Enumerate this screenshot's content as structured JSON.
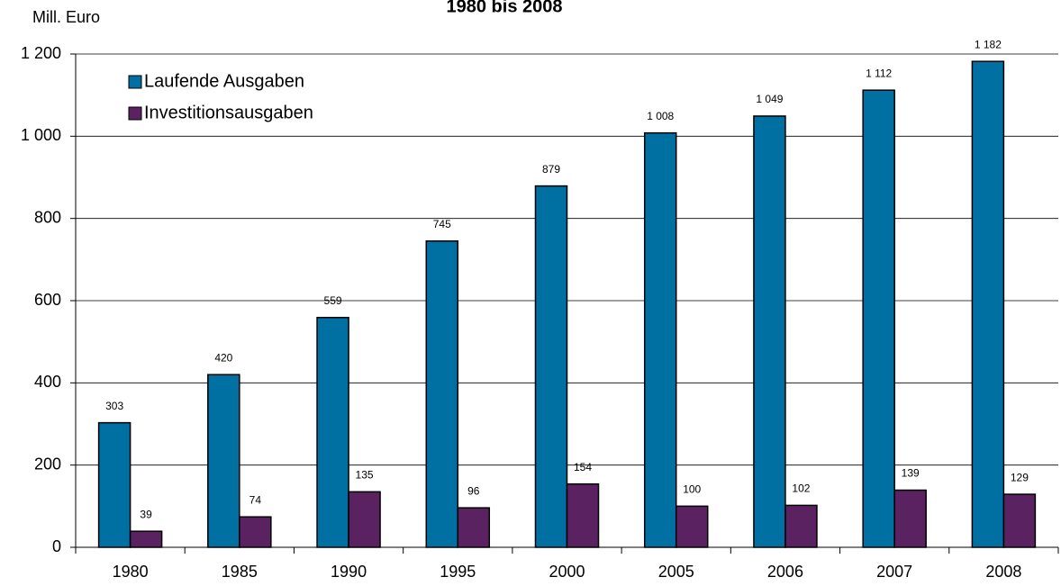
{
  "chart_data": {
    "type": "bar",
    "title": "1980 bis 2008",
    "y_label": "Mill. Euro",
    "categories": [
      "1980",
      "1985",
      "1990",
      "1995",
      "2000",
      "2005",
      "2006",
      "2007",
      "2008"
    ],
    "series": [
      {
        "name": "Laufende Ausgaben",
        "color": "#0070a2",
        "values": [
          303,
          420,
          559,
          745,
          879,
          1008,
          1049,
          1112,
          1182
        ],
        "value_labels": [
          "303",
          "420",
          "559",
          "745",
          "879",
          "1 008",
          "1 049",
          "1 112",
          "1 182"
        ]
      },
      {
        "name": "Investitionsausgaben",
        "color": "#5b2262",
        "values": [
          39,
          74,
          135,
          96,
          154,
          100,
          102,
          139,
          129
        ]
      }
    ],
    "ylim": [
      0,
      1200
    ],
    "yticks": [
      0,
      200,
      400,
      600,
      800,
      {
        "value": 1000,
        "label": "1 000"
      },
      {
        "value": 1200,
        "label": "1 200"
      }
    ],
    "grid": true,
    "legend": "upper left"
  }
}
